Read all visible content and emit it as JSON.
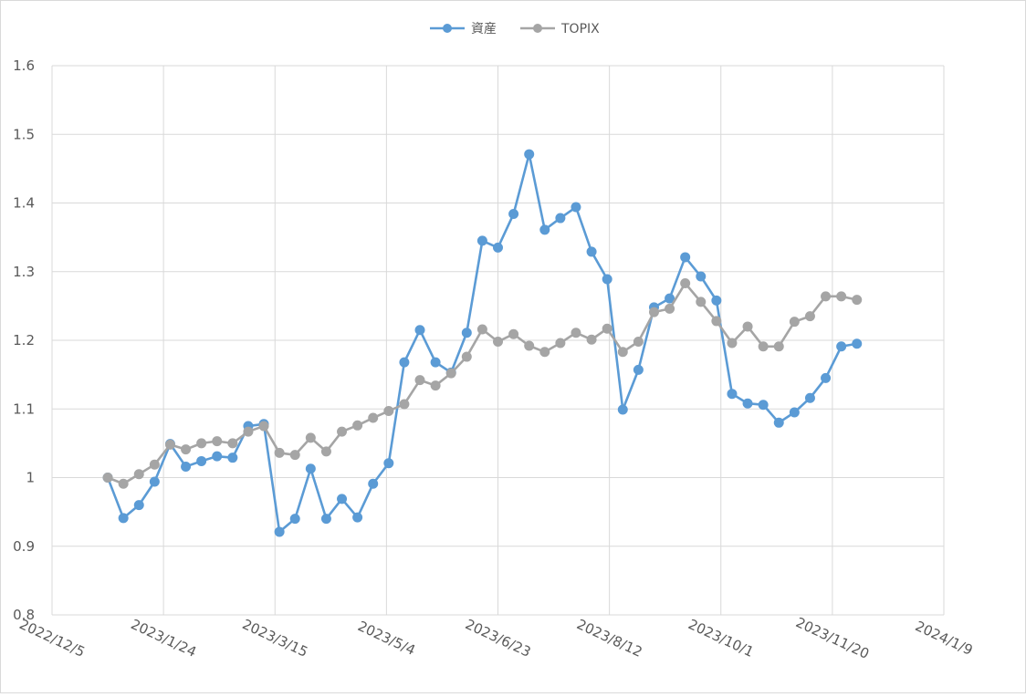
{
  "chart_data": {
    "type": "line",
    "title": "",
    "xlabel": "",
    "ylabel": "",
    "ylim": [
      0.8,
      1.6
    ],
    "y_ticks": [
      0.8,
      0.9,
      1,
      1.1,
      1.2,
      1.3,
      1.4,
      1.5,
      1.6
    ],
    "y_tick_labels": [
      "0.8",
      "0.9",
      "1",
      "1.1",
      "1.2",
      "1.3",
      "1.4",
      "1.5",
      "1.6"
    ],
    "xlim": [
      "2022-12-05",
      "2024-01-09"
    ],
    "x_ticks": [
      "2022-12-05",
      "2023-01-24",
      "2023-03-15",
      "2023-05-04",
      "2023-06-23",
      "2023-08-12",
      "2023-10-01",
      "2023-11-20",
      "2024-01-09"
    ],
    "x_tick_labels": [
      "2022/12/5",
      "2023/1/24",
      "2023/3/15",
      "2023/5/4",
      "2023/6/23",
      "2023/8/12",
      "2023/10/1",
      "2023/11/20",
      "2024/1/9"
    ],
    "grid": true,
    "legend_position": "top",
    "x": [
      "2022-12-30",
      "2023-01-06",
      "2023-01-13",
      "2023-01-20",
      "2023-01-27",
      "2023-02-03",
      "2023-02-10",
      "2023-02-17",
      "2023-02-24",
      "2023-03-03",
      "2023-03-10",
      "2023-03-17",
      "2023-03-24",
      "2023-03-31",
      "2023-04-07",
      "2023-04-14",
      "2023-04-21",
      "2023-04-28",
      "2023-05-05",
      "2023-05-12",
      "2023-05-19",
      "2023-05-26",
      "2023-06-02",
      "2023-06-09",
      "2023-06-16",
      "2023-06-23",
      "2023-06-30",
      "2023-07-07",
      "2023-07-14",
      "2023-07-21",
      "2023-07-28",
      "2023-08-04",
      "2023-08-11",
      "2023-08-18",
      "2023-08-25",
      "2023-09-01",
      "2023-09-08",
      "2023-09-15",
      "2023-09-22",
      "2023-09-29",
      "2023-10-06",
      "2023-10-13",
      "2023-10-20",
      "2023-10-27",
      "2023-11-03",
      "2023-11-10",
      "2023-11-17",
      "2023-11-24",
      "2023-12-01",
      "2023-12-08"
    ],
    "series": [
      {
        "name": "資産",
        "color": "#5b9bd5",
        "values": [
          1.0,
          0.941,
          0.96,
          0.994,
          1.049,
          1.016,
          1.024,
          1.031,
          1.029,
          1.075,
          1.078,
          0.921,
          0.94,
          1.013,
          0.94,
          0.969,
          0.942,
          0.991,
          1.021,
          1.168,
          1.215,
          1.168,
          1.153,
          1.211,
          1.345,
          1.335,
          1.384,
          1.471,
          1.361,
          1.378,
          1.394,
          1.329,
          1.289,
          1.099,
          1.157,
          1.248,
          1.261,
          1.321,
          1.293,
          1.258,
          1.122,
          1.108,
          1.106,
          1.08,
          1.095,
          1.116,
          1.145,
          1.191,
          1.195,
          null
        ]
      },
      {
        "name": "TOPIX",
        "color": "#a5a5a5",
        "values": [
          1.0,
          0.991,
          1.005,
          1.019,
          1.048,
          1.041,
          1.05,
          1.053,
          1.05,
          1.067,
          1.075,
          1.036,
          1.033,
          1.058,
          1.038,
          1.067,
          1.076,
          1.087,
          1.097,
          1.107,
          1.142,
          1.134,
          1.152,
          1.176,
          1.216,
          1.198,
          1.209,
          1.192,
          1.183,
          1.196,
          1.211,
          1.201,
          1.217,
          1.183,
          1.198,
          1.241,
          1.246,
          1.283,
          1.256,
          1.228,
          1.196,
          1.22,
          1.191,
          1.191,
          1.227,
          1.235,
          1.264,
          1.264,
          1.259,
          null
        ]
      }
    ]
  }
}
